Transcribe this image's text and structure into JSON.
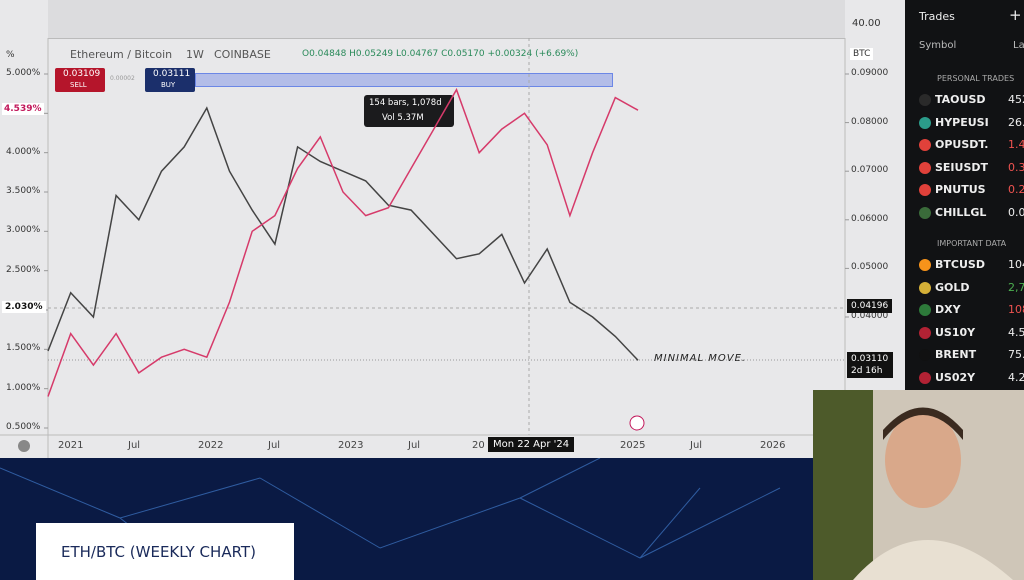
{
  "top_strip": {
    "value_label": "40.00"
  },
  "header": {
    "axis_mode": "%",
    "symbol": "Ethereum / Bitcoin",
    "interval": "1W",
    "exchange": "COINBASE",
    "ohlc": "O0.04848 H0.05249 L0.04767 C0.05170 +0.00324 (+6.69%)",
    "currency": "BTC"
  },
  "order_panel": {
    "sell_price": "0.03109",
    "sell_label": "SELL",
    "spread": "0.00002",
    "buy_price": "0.03111",
    "buy_label": "BUY"
  },
  "measure_tooltip": {
    "bars": "154 bars, 1,078d",
    "volume": "Vol 5.37M"
  },
  "left_axis": {
    "ticks": [
      {
        "value": 5,
        "label": "5.000%"
      },
      {
        "value": 4.5,
        "label": "4.500%"
      },
      {
        "value": 4,
        "label": "4.000%"
      },
      {
        "value": 3.5,
        "label": "3.500%"
      },
      {
        "value": 3,
        "label": "3.000%"
      },
      {
        "value": 2.5,
        "label": "2.500%"
      },
      {
        "value": 2,
        "label": "2.000%"
      },
      {
        "value": 1.5,
        "label": "1.500%"
      },
      {
        "value": 1,
        "label": "1.000%"
      },
      {
        "value": 0.5,
        "label": "0.500%"
      }
    ],
    "current_overlay": {
      "value": 4.539,
      "label": "4.539%"
    },
    "crosshair": {
      "value": 2.03,
      "label": "2.030%"
    }
  },
  "right_axis": {
    "ticks": [
      {
        "value": 0.09,
        "label": "0.09000"
      },
      {
        "value": 0.08,
        "label": "0.08000"
      },
      {
        "value": 0.07,
        "label": "0.07000"
      },
      {
        "value": 0.06,
        "label": "0.06000"
      },
      {
        "value": 0.05,
        "label": "0.05000"
      },
      {
        "value": 0.04,
        "label": "0.04000"
      }
    ],
    "crosshair": {
      "value": 0.04196,
      "label": "0.04196"
    },
    "last_price": {
      "value": 0.0311,
      "label": "0.03110"
    },
    "countdown": "2d 16h"
  },
  "x_axis": {
    "labels": [
      "2021",
      "Jul",
      "2022",
      "Jul",
      "2023",
      "Jul",
      "20",
      "2025",
      "Jul",
      "2026"
    ],
    "crosshair": "Mon 22 Apr '24"
  },
  "price_series": {
    "color": "#444444",
    "values": [
      0.033,
      0.045,
      0.04,
      0.065,
      0.06,
      0.07,
      0.075,
      0.083,
      0.07,
      0.062,
      0.055,
      0.075,
      0.072,
      0.07,
      0.068,
      0.063,
      0.062,
      0.057,
      0.052,
      0.053,
      0.057,
      0.047,
      0.054,
      0.043,
      0.04,
      0.036,
      0.0311
    ]
  },
  "overlay_series": {
    "color": "#d63a6a",
    "values": [
      0.9,
      1.7,
      1.3,
      1.7,
      1.2,
      1.4,
      1.5,
      1.4,
      2.1,
      3.0,
      3.2,
      3.8,
      4.2,
      3.5,
      3.2,
      3.3,
      3.8,
      4.3,
      4.8,
      4.0,
      4.3,
      4.5,
      4.1,
      3.2,
      4.0,
      4.7,
      4.54
    ]
  },
  "annotation": "MINIMAL MOVE.",
  "watchlist": {
    "title": "Trades",
    "col_symbol": "Symbol",
    "col_last": "La",
    "personal_header": "PERSONAL TRADES",
    "personal": [
      [
        "TAOUSD",
        "452"
      ],
      [
        "HYPEUSI",
        "26.3"
      ],
      [
        "OPUSDT.",
        "1.40"
      ],
      [
        "SEIUSDT",
        "0.33"
      ],
      [
        "PNUTUS",
        "0.24"
      ],
      [
        "CHILLGL",
        "0.05"
      ]
    ],
    "important_header": "IMPORTANT DATA",
    "important": [
      [
        "BTCUSD",
        "104,073"
      ],
      [
        "GOLD",
        "2,793.2"
      ],
      [
        "DXY",
        "108.1"
      ],
      [
        "US10Y",
        "4.5"
      ],
      [
        "BRENT",
        "75.8"
      ],
      [
        "US02Y",
        "4.2"
      ]
    ]
  },
  "caption": "ETH/BTC (WEEKLY CHART)"
}
